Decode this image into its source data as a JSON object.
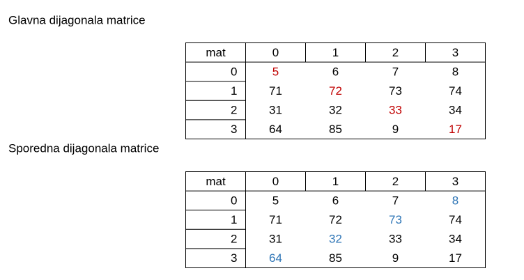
{
  "sections": [
    {
      "title": "Glavna dijagonala matrice",
      "table": {
        "header": [
          "mat",
          "0",
          "1",
          "2",
          "3"
        ],
        "rows": [
          [
            "0",
            "5",
            "6",
            "7",
            "8"
          ],
          [
            "1",
            "71",
            "72",
            "73",
            "74"
          ],
          [
            "2",
            "31",
            "32",
            "33",
            "34"
          ],
          [
            "3",
            "64",
            "85",
            "9",
            "17"
          ]
        ]
      },
      "highlight": {
        "color": "#c00000",
        "cells": [
          [
            0,
            1
          ],
          [
            1,
            2
          ],
          [
            2,
            3
          ],
          [
            3,
            4
          ]
        ]
      }
    },
    {
      "title": "Sporedna dijagonala matrice",
      "table": {
        "header": [
          "mat",
          "0",
          "1",
          "2",
          "3"
        ],
        "rows": [
          [
            "0",
            "5",
            "6",
            "7",
            "8"
          ],
          [
            "1",
            "71",
            "72",
            "73",
            "74"
          ],
          [
            "2",
            "31",
            "32",
            "33",
            "34"
          ],
          [
            "3",
            "64",
            "85",
            "9",
            "17"
          ]
        ]
      },
      "highlight": {
        "color": "#2e75b6",
        "cells": [
          [
            0,
            4
          ],
          [
            1,
            3
          ],
          [
            2,
            2
          ],
          [
            3,
            1
          ]
        ]
      }
    }
  ]
}
